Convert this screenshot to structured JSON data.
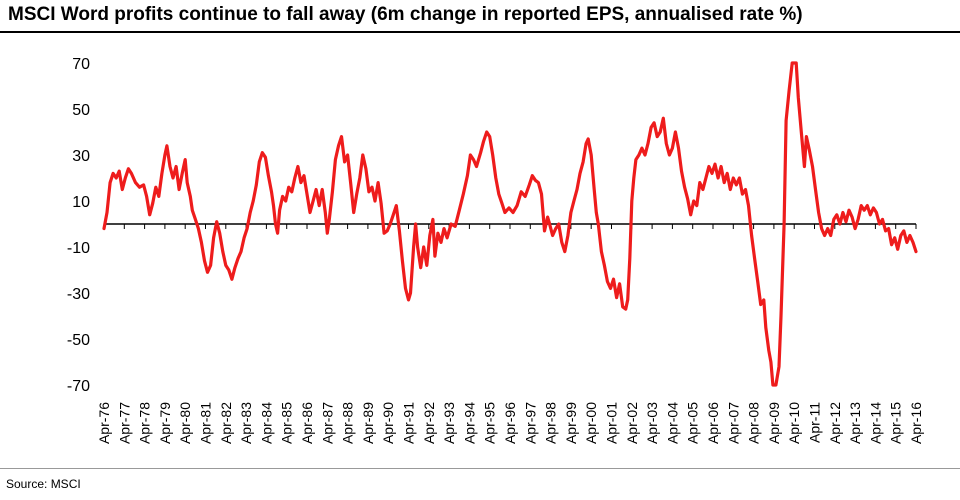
{
  "title": "MSCI Word profits continue to fall away (6m change in reported EPS, annualised rate %)",
  "source": "Source: MSCI",
  "chart_data": {
    "type": "line",
    "title": "MSCI Word profits continue to fall away (6m change in reported EPS, annualised rate %)",
    "xlabel": "",
    "ylabel": "",
    "ylim": [
      -70,
      70
    ],
    "yticks": [
      70,
      50,
      30,
      10,
      -10,
      -30,
      -50,
      -70
    ],
    "xticks": [
      "Apr-76",
      "Apr-77",
      "Apr-78",
      "Apr-79",
      "Apr-80",
      "Apr-81",
      "Apr-82",
      "Apr-83",
      "Apr-84",
      "Apr-85",
      "Apr-86",
      "Apr-87",
      "Apr-88",
      "Apr-89",
      "Apr-90",
      "Apr-91",
      "Apr-92",
      "Apr-93",
      "Apr-94",
      "Apr-95",
      "Apr-96",
      "Apr-97",
      "Apr-98",
      "Apr-99",
      "Apr-00",
      "Apr-01",
      "Apr-02",
      "Apr-03",
      "Apr-04",
      "Apr-05",
      "Apr-06",
      "Apr-07",
      "Apr-08",
      "Apr-09",
      "Apr-10",
      "Apr-11",
      "Apr-12",
      "Apr-13",
      "Apr-14",
      "Apr-15",
      "Apr-16"
    ],
    "grid": false,
    "zero_line": true,
    "line_color": "#ee1c1c",
    "series": [
      {
        "name": "",
        "points": [
          [
            1976.25,
            -2
          ],
          [
            1976.4,
            5
          ],
          [
            1976.55,
            18
          ],
          [
            1976.7,
            22
          ],
          [
            1976.85,
            20
          ],
          [
            1977.0,
            23
          ],
          [
            1977.15,
            15
          ],
          [
            1977.3,
            20
          ],
          [
            1977.45,
            24
          ],
          [
            1977.6,
            22
          ],
          [
            1977.8,
            18
          ],
          [
            1978.0,
            16
          ],
          [
            1978.2,
            17
          ],
          [
            1978.35,
            12
          ],
          [
            1978.5,
            4
          ],
          [
            1978.65,
            9
          ],
          [
            1978.8,
            16
          ],
          [
            1978.95,
            12
          ],
          [
            1979.1,
            22
          ],
          [
            1979.25,
            30
          ],
          [
            1979.35,
            34
          ],
          [
            1979.5,
            25
          ],
          [
            1979.65,
            20
          ],
          [
            1979.8,
            25
          ],
          [
            1979.95,
            15
          ],
          [
            1980.1,
            22
          ],
          [
            1980.25,
            28
          ],
          [
            1980.35,
            18
          ],
          [
            1980.5,
            12
          ],
          [
            1980.6,
            6
          ],
          [
            1980.75,
            2
          ],
          [
            1980.9,
            -2
          ],
          [
            1981.05,
            -8
          ],
          [
            1981.2,
            -16
          ],
          [
            1981.35,
            -21
          ],
          [
            1981.5,
            -18
          ],
          [
            1981.65,
            -6
          ],
          [
            1981.8,
            1
          ],
          [
            1981.95,
            -4
          ],
          [
            1982.1,
            -12
          ],
          [
            1982.25,
            -18
          ],
          [
            1982.4,
            -20
          ],
          [
            1982.55,
            -24
          ],
          [
            1982.7,
            -19
          ],
          [
            1982.85,
            -15
          ],
          [
            1983.0,
            -12
          ],
          [
            1983.15,
            -6
          ],
          [
            1983.3,
            -2
          ],
          [
            1983.45,
            5
          ],
          [
            1983.6,
            10
          ],
          [
            1983.75,
            17
          ],
          [
            1983.9,
            27
          ],
          [
            1984.05,
            31
          ],
          [
            1984.2,
            29
          ],
          [
            1984.35,
            21
          ],
          [
            1984.5,
            14
          ],
          [
            1984.6,
            8
          ],
          [
            1984.7,
            0
          ],
          [
            1984.8,
            -4
          ],
          [
            1984.9,
            6
          ],
          [
            1985.05,
            12
          ],
          [
            1985.2,
            10
          ],
          [
            1985.35,
            16
          ],
          [
            1985.5,
            14
          ],
          [
            1985.65,
            20
          ],
          [
            1985.8,
            25
          ],
          [
            1985.95,
            18
          ],
          [
            1986.1,
            21
          ],
          [
            1986.25,
            13
          ],
          [
            1986.4,
            5
          ],
          [
            1986.55,
            10
          ],
          [
            1986.7,
            15
          ],
          [
            1986.85,
            8
          ],
          [
            1987.0,
            15
          ],
          [
            1987.15,
            5
          ],
          [
            1987.25,
            -4
          ],
          [
            1987.35,
            2
          ],
          [
            1987.5,
            14
          ],
          [
            1987.65,
            28
          ],
          [
            1987.8,
            34
          ],
          [
            1987.95,
            38
          ],
          [
            1988.1,
            27
          ],
          [
            1988.25,
            30
          ],
          [
            1988.4,
            18
          ],
          [
            1988.55,
            5
          ],
          [
            1988.7,
            13
          ],
          [
            1988.85,
            20
          ],
          [
            1989.0,
            30
          ],
          [
            1989.15,
            24
          ],
          [
            1989.3,
            14
          ],
          [
            1989.45,
            16
          ],
          [
            1989.6,
            10
          ],
          [
            1989.75,
            18
          ],
          [
            1989.9,
            9
          ],
          [
            1990.05,
            -4
          ],
          [
            1990.2,
            -3
          ],
          [
            1990.35,
            0
          ],
          [
            1990.5,
            4
          ],
          [
            1990.65,
            8
          ],
          [
            1990.8,
            -3
          ],
          [
            1990.95,
            -16
          ],
          [
            1991.1,
            -28
          ],
          [
            1991.25,
            -33
          ],
          [
            1991.35,
            -30
          ],
          [
            1991.5,
            -10
          ],
          [
            1991.6,
            0
          ],
          [
            1991.7,
            -10
          ],
          [
            1991.85,
            -19
          ],
          [
            1992.0,
            -10
          ],
          [
            1992.15,
            -18
          ],
          [
            1992.3,
            -5
          ],
          [
            1992.45,
            2
          ],
          [
            1992.55,
            -14
          ],
          [
            1992.7,
            -4
          ],
          [
            1992.85,
            -8
          ],
          [
            1993.0,
            -2
          ],
          [
            1993.15,
            -6
          ],
          [
            1993.35,
            0
          ],
          [
            1993.55,
            -1
          ],
          [
            1993.75,
            6
          ],
          [
            1993.95,
            13
          ],
          [
            1994.15,
            21
          ],
          [
            1994.3,
            30
          ],
          [
            1994.45,
            28
          ],
          [
            1994.6,
            25
          ],
          [
            1994.8,
            31
          ],
          [
            1994.95,
            36
          ],
          [
            1995.1,
            40
          ],
          [
            1995.25,
            38
          ],
          [
            1995.4,
            30
          ],
          [
            1995.55,
            20
          ],
          [
            1995.7,
            13
          ],
          [
            1995.85,
            9
          ],
          [
            1996.0,
            5
          ],
          [
            1996.2,
            7
          ],
          [
            1996.4,
            5
          ],
          [
            1996.6,
            8
          ],
          [
            1996.8,
            14
          ],
          [
            1997.0,
            12
          ],
          [
            1997.2,
            17
          ],
          [
            1997.35,
            21
          ],
          [
            1997.5,
            19
          ],
          [
            1997.65,
            18
          ],
          [
            1997.8,
            13
          ],
          [
            1997.95,
            -3
          ],
          [
            1998.1,
            3
          ],
          [
            1998.2,
            0
          ],
          [
            1998.35,
            -5
          ],
          [
            1998.5,
            -2
          ],
          [
            1998.65,
            0
          ],
          [
            1998.8,
            -8
          ],
          [
            1998.95,
            -12
          ],
          [
            1999.1,
            -5
          ],
          [
            1999.25,
            5
          ],
          [
            1999.4,
            10
          ],
          [
            1999.55,
            15
          ],
          [
            1999.7,
            22
          ],
          [
            1999.85,
            27
          ],
          [
            2000.0,
            35
          ],
          [
            2000.1,
            37
          ],
          [
            2000.25,
            30
          ],
          [
            2000.4,
            15
          ],
          [
            2000.5,
            5
          ],
          [
            2000.6,
            0
          ],
          [
            2000.75,
            -12
          ],
          [
            2000.9,
            -18
          ],
          [
            2001.05,
            -25
          ],
          [
            2001.2,
            -28
          ],
          [
            2001.35,
            -24
          ],
          [
            2001.5,
            -32
          ],
          [
            2001.65,
            -26
          ],
          [
            2001.8,
            -36
          ],
          [
            2001.95,
            -37
          ],
          [
            2002.05,
            -33
          ],
          [
            2002.15,
            -15
          ],
          [
            2002.25,
            10
          ],
          [
            2002.35,
            20
          ],
          [
            2002.45,
            28
          ],
          [
            2002.6,
            30
          ],
          [
            2002.75,
            33
          ],
          [
            2002.9,
            30
          ],
          [
            2003.05,
            35
          ],
          [
            2003.2,
            42
          ],
          [
            2003.35,
            44
          ],
          [
            2003.5,
            38
          ],
          [
            2003.65,
            40
          ],
          [
            2003.8,
            46
          ],
          [
            2003.95,
            35
          ],
          [
            2004.1,
            30
          ],
          [
            2004.25,
            33
          ],
          [
            2004.4,
            40
          ],
          [
            2004.55,
            33
          ],
          [
            2004.7,
            23
          ],
          [
            2004.85,
            16
          ],
          [
            2005.0,
            11
          ],
          [
            2005.15,
            4
          ],
          [
            2005.3,
            10
          ],
          [
            2005.45,
            8
          ],
          [
            2005.6,
            18
          ],
          [
            2005.75,
            15
          ],
          [
            2005.9,
            20
          ],
          [
            2006.05,
            25
          ],
          [
            2006.2,
            22
          ],
          [
            2006.35,
            26
          ],
          [
            2006.5,
            20
          ],
          [
            2006.65,
            25
          ],
          [
            2006.8,
            18
          ],
          [
            2006.95,
            22
          ],
          [
            2007.1,
            15
          ],
          [
            2007.25,
            20
          ],
          [
            2007.4,
            17
          ],
          [
            2007.55,
            20
          ],
          [
            2007.7,
            13
          ],
          [
            2007.85,
            15
          ],
          [
            2008.0,
            8
          ],
          [
            2008.15,
            -5
          ],
          [
            2008.3,
            -15
          ],
          [
            2008.45,
            -25
          ],
          [
            2008.6,
            -35
          ],
          [
            2008.75,
            -33
          ],
          [
            2008.85,
            -45
          ],
          [
            2009.0,
            -55
          ],
          [
            2009.1,
            -60
          ],
          [
            2009.2,
            -70
          ],
          [
            2009.35,
            -70
          ],
          [
            2009.5,
            -62
          ],
          [
            2009.6,
            -40
          ],
          [
            2009.75,
            0
          ],
          [
            2009.85,
            45
          ],
          [
            2010.0,
            58
          ],
          [
            2010.15,
            70
          ],
          [
            2010.35,
            70
          ],
          [
            2010.45,
            55
          ],
          [
            2010.6,
            40
          ],
          [
            2010.75,
            25
          ],
          [
            2010.85,
            38
          ],
          [
            2011.0,
            32
          ],
          [
            2011.15,
            25
          ],
          [
            2011.3,
            15
          ],
          [
            2011.45,
            5
          ],
          [
            2011.6,
            -2
          ],
          [
            2011.75,
            -5
          ],
          [
            2011.9,
            -2
          ],
          [
            2012.05,
            -5
          ],
          [
            2012.2,
            2
          ],
          [
            2012.35,
            4
          ],
          [
            2012.5,
            0
          ],
          [
            2012.65,
            5
          ],
          [
            2012.8,
            1
          ],
          [
            2012.95,
            6
          ],
          [
            2013.1,
            3
          ],
          [
            2013.25,
            -2
          ],
          [
            2013.4,
            2
          ],
          [
            2013.55,
            8
          ],
          [
            2013.7,
            6
          ],
          [
            2013.85,
            8
          ],
          [
            2014.0,
            4
          ],
          [
            2014.15,
            7
          ],
          [
            2014.3,
            5
          ],
          [
            2014.45,
            0
          ],
          [
            2014.6,
            2
          ],
          [
            2014.75,
            -3
          ],
          [
            2014.9,
            -2
          ],
          [
            2015.05,
            -9
          ],
          [
            2015.2,
            -6
          ],
          [
            2015.35,
            -11
          ],
          [
            2015.5,
            -5
          ],
          [
            2015.65,
            -3
          ],
          [
            2015.8,
            -8
          ],
          [
            2015.95,
            -5
          ],
          [
            2016.1,
            -8
          ],
          [
            2016.25,
            -12
          ]
        ]
      }
    ]
  }
}
